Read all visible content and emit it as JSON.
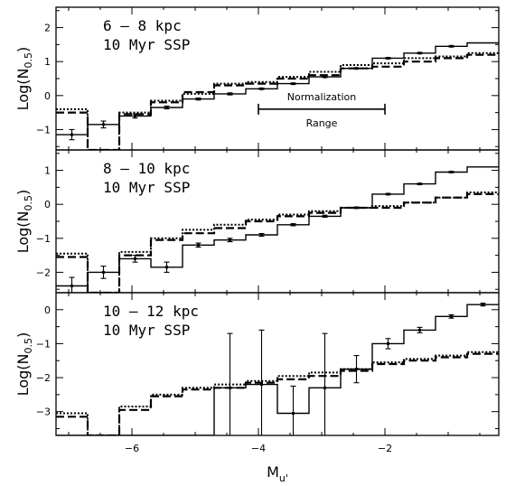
{
  "chart_data": [
    {
      "type": "line",
      "step": true,
      "panel_label": [
        "6 – 8 kpc",
        "10 Myr SSP"
      ],
      "xlabel": "",
      "ylabel": "Log(N",
      "ylabel_sub": "0.5",
      "ylabel_close": ")",
      "xlim": [
        -7.2,
        -0.2
      ],
      "ylim": [
        -1.6,
        2.6
      ],
      "yticks": [
        -1,
        0,
        1,
        2
      ],
      "bin_edges": [
        -7.2,
        -6.7,
        -6.2,
        -5.7,
        -5.2,
        -4.7,
        -4.2,
        -3.7,
        -3.2,
        -2.7,
        -2.2,
        -1.7,
        -1.2,
        -0.7,
        -0.2
      ],
      "series": [
        {
          "style": "solid",
          "values": [
            -1.15,
            -0.85,
            -0.6,
            -0.35,
            -0.1,
            0.05,
            0.2,
            0.35,
            0.55,
            0.8,
            1.1,
            1.25,
            1.45,
            1.55
          ]
        },
        {
          "style": "dashed",
          "values": [
            -0.5,
            -1.9,
            -0.55,
            -0.2,
            0.1,
            0.3,
            0.35,
            0.5,
            0.6,
            0.8,
            0.85,
            1.0,
            1.1,
            1.2
          ]
        },
        {
          "style": "dotted",
          "values": [
            -0.4,
            -1.9,
            -0.5,
            -0.15,
            0.05,
            0.35,
            0.4,
            0.55,
            0.7,
            0.9,
            0.95,
            1.1,
            1.15,
            1.25
          ]
        }
      ],
      "errorbars": [
        {
          "x": -6.95,
          "y": -1.15,
          "err": 0.15
        },
        {
          "x": -6.45,
          "y": -0.85,
          "err": 0.1
        },
        {
          "x": -5.95,
          "y": -0.6,
          "err": 0.06
        },
        {
          "x": -5.45,
          "y": -0.35,
          "err": 0.04
        },
        {
          "x": -4.95,
          "y": -0.1,
          "err": 0.03
        },
        {
          "x": -4.45,
          "y": 0.05,
          "err": 0.03
        },
        {
          "x": -3.95,
          "y": 0.2,
          "err": 0.02
        },
        {
          "x": -3.45,
          "y": 0.35,
          "err": 0.02
        },
        {
          "x": -2.95,
          "y": 0.55,
          "err": 0.02
        },
        {
          "x": -2.45,
          "y": 0.8,
          "err": 0.02
        },
        {
          "x": -1.95,
          "y": 1.1,
          "err": 0.02
        },
        {
          "x": -1.45,
          "y": 1.25,
          "err": 0.02
        },
        {
          "x": -0.95,
          "y": 1.45,
          "err": 0.02
        }
      ],
      "normalization": {
        "x_range": [
          -4.0,
          -2.0
        ],
        "y": -0.4,
        "label_top": "Normalization",
        "label_bottom": "Range"
      }
    },
    {
      "type": "line",
      "step": true,
      "panel_label": [
        "8 – 10 kpc",
        "10 Myr SSP"
      ],
      "xlabel": "",
      "ylabel": "Log(N",
      "ylabel_sub": "0.5",
      "ylabel_close": ")",
      "xlim": [
        -7.2,
        -0.2
      ],
      "ylim": [
        -2.6,
        1.6
      ],
      "yticks": [
        -2,
        -1,
        0,
        1
      ],
      "bin_edges": [
        -7.2,
        -6.7,
        -6.2,
        -5.7,
        -5.2,
        -4.7,
        -4.2,
        -3.7,
        -3.2,
        -2.7,
        -2.2,
        -1.7,
        -1.2,
        -0.7,
        -0.2
      ],
      "series": [
        {
          "style": "solid",
          "values": [
            -2.4,
            -2.0,
            -1.6,
            -1.85,
            -1.2,
            -1.05,
            -0.9,
            -0.6,
            -0.35,
            -0.1,
            0.3,
            0.6,
            0.95,
            1.1
          ]
        },
        {
          "style": "dashed",
          "values": [
            -1.55,
            -2.6,
            -1.5,
            -1.05,
            -0.85,
            -0.7,
            -0.5,
            -0.35,
            -0.25,
            -0.1,
            -0.1,
            0.05,
            0.2,
            0.3
          ]
        },
        {
          "style": "dotted",
          "values": [
            -1.45,
            -2.6,
            -1.4,
            -1.0,
            -0.75,
            -0.6,
            -0.45,
            -0.3,
            -0.2,
            -0.1,
            -0.05,
            0.05,
            0.2,
            0.35
          ]
        }
      ],
      "errorbars": [
        {
          "x": -6.95,
          "y": -2.4,
          "err": 0.25
        },
        {
          "x": -6.45,
          "y": -2.0,
          "err": 0.18
        },
        {
          "x": -5.95,
          "y": -1.6,
          "err": 0.1
        },
        {
          "x": -5.45,
          "y": -1.85,
          "err": 0.15
        },
        {
          "x": -4.95,
          "y": -1.2,
          "err": 0.06
        },
        {
          "x": -4.45,
          "y": -1.05,
          "err": 0.05
        },
        {
          "x": -3.95,
          "y": -0.9,
          "err": 0.04
        },
        {
          "x": -3.45,
          "y": -0.6,
          "err": 0.03
        },
        {
          "x": -2.95,
          "y": -0.35,
          "err": 0.03
        },
        {
          "x": -2.45,
          "y": -0.1,
          "err": 0.02
        },
        {
          "x": -1.95,
          "y": 0.3,
          "err": 0.02
        },
        {
          "x": -1.45,
          "y": 0.6,
          "err": 0.02
        },
        {
          "x": -0.95,
          "y": 0.95,
          "err": 0.02
        }
      ]
    },
    {
      "type": "line",
      "step": true,
      "panel_label": [
        "10 – 12 kpc",
        "10 Myr SSP"
      ],
      "xlabel": "M",
      "xlabel_sub": "u'",
      "ylabel": "Log(N",
      "ylabel_sub": "0.5",
      "ylabel_close": ")",
      "xlim": [
        -7.2,
        -0.2
      ],
      "xticks": [
        -6,
        -4,
        -2
      ],
      "ylim": [
        -3.7,
        0.5
      ],
      "yticks": [
        -3,
        -2,
        -1,
        0
      ],
      "bin_edges": [
        -7.2,
        -6.7,
        -6.2,
        -5.7,
        -5.2,
        -4.7,
        -4.2,
        -3.7,
        -3.2,
        -2.7,
        -2.2,
        -1.7,
        -1.2,
        -0.7,
        -0.2
      ],
      "series": [
        {
          "style": "solid",
          "values": [
            -4.2,
            -4.2,
            -4.2,
            -4.2,
            -4.2,
            -2.3,
            -2.2,
            -3.05,
            -2.3,
            -1.75,
            -1.0,
            -0.6,
            -0.2,
            0.15
          ]
        },
        {
          "style": "dashed",
          "values": [
            -3.15,
            -4.2,
            -2.95,
            -2.55,
            -2.35,
            -2.3,
            -2.15,
            -2.05,
            -1.95,
            -1.8,
            -1.6,
            -1.5,
            -1.4,
            -1.3
          ]
        },
        {
          "style": "dotted",
          "values": [
            -3.05,
            -4.2,
            -2.85,
            -2.5,
            -2.3,
            -2.2,
            -2.1,
            -1.95,
            -1.85,
            -1.75,
            -1.55,
            -1.45,
            -1.35,
            -1.25
          ]
        }
      ],
      "errorbars": [
        {
          "x": -4.45,
          "y": -2.3,
          "err": 1.6
        },
        {
          "x": -3.95,
          "y": -2.2,
          "err": 1.6
        },
        {
          "x": -3.45,
          "y": -3.05,
          "err": 0.8
        },
        {
          "x": -2.95,
          "y": -2.3,
          "err": 1.6
        },
        {
          "x": -2.45,
          "y": -1.75,
          "err": 0.4
        },
        {
          "x": -1.95,
          "y": -1.0,
          "err": 0.15
        },
        {
          "x": -1.45,
          "y": -0.6,
          "err": 0.08
        },
        {
          "x": -0.95,
          "y": -0.2,
          "err": 0.05
        },
        {
          "x": -0.45,
          "y": 0.15,
          "err": 0.04
        }
      ]
    }
  ]
}
